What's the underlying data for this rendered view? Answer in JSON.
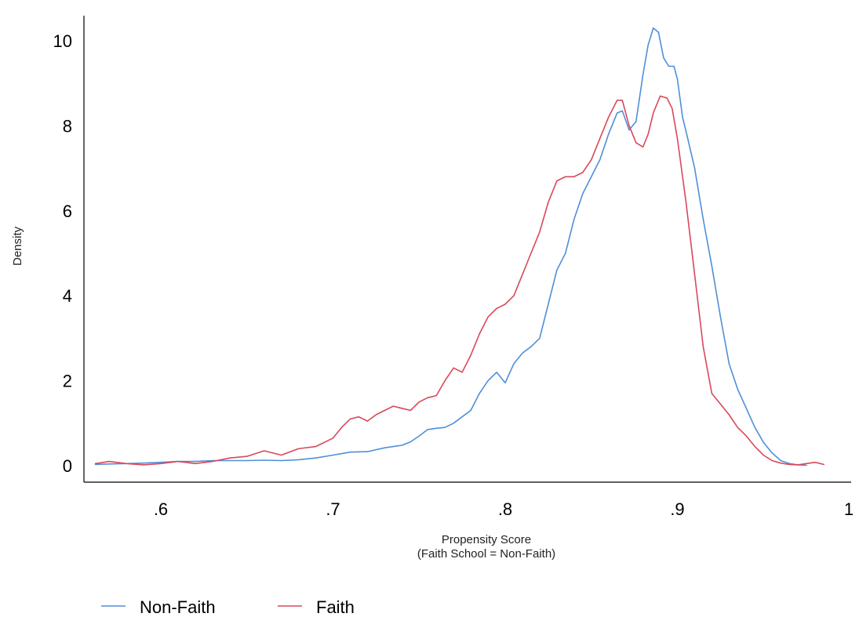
{
  "chart_data": {
    "type": "line",
    "xlabel": "Propensity Score",
    "xlabel_sub": "(Faith School = Non-Faith)",
    "ylabel": "Density",
    "xlim": [
      0.56,
      1.0
    ],
    "ylim": [
      0,
      10.5
    ],
    "x_ticks": [
      {
        "value": 0.6,
        "label": ".6"
      },
      {
        "value": 0.7,
        "label": ".7"
      },
      {
        "value": 0.8,
        "label": ".8"
      },
      {
        "value": 0.9,
        "label": ".9"
      },
      {
        "value": 1.0,
        "label": "1"
      }
    ],
    "y_ticks": [
      {
        "value": 0,
        "label": "0"
      },
      {
        "value": 2,
        "label": "2"
      },
      {
        "value": 4,
        "label": "4"
      },
      {
        "value": 6,
        "label": "6"
      },
      {
        "value": 8,
        "label": "8"
      },
      {
        "value": 10,
        "label": "10"
      }
    ],
    "grid": false,
    "legend": "bottom-left",
    "series": [
      {
        "name": "Non-Faith",
        "color": "#4f8fd6",
        "x": [
          0.562,
          0.57,
          0.58,
          0.59,
          0.6,
          0.61,
          0.62,
          0.63,
          0.64,
          0.65,
          0.66,
          0.67,
          0.68,
          0.69,
          0.7,
          0.71,
          0.72,
          0.73,
          0.74,
          0.745,
          0.75,
          0.755,
          0.76,
          0.765,
          0.77,
          0.775,
          0.78,
          0.785,
          0.79,
          0.795,
          0.8,
          0.805,
          0.81,
          0.815,
          0.82,
          0.825,
          0.83,
          0.835,
          0.84,
          0.845,
          0.85,
          0.855,
          0.86,
          0.865,
          0.868,
          0.872,
          0.876,
          0.88,
          0.883,
          0.886,
          0.889,
          0.892,
          0.895,
          0.898,
          0.9,
          0.903,
          0.906,
          0.91,
          0.915,
          0.92,
          0.925,
          0.93,
          0.935,
          0.94,
          0.945,
          0.95,
          0.955,
          0.96,
          0.965,
          0.97,
          0.975
        ],
        "y": [
          0.03,
          0.04,
          0.05,
          0.06,
          0.08,
          0.1,
          0.1,
          0.12,
          0.12,
          0.12,
          0.13,
          0.12,
          0.14,
          0.18,
          0.25,
          0.32,
          0.33,
          0.42,
          0.48,
          0.56,
          0.7,
          0.85,
          0.88,
          0.9,
          1.0,
          1.15,
          1.3,
          1.7,
          2.0,
          2.2,
          1.95,
          2.4,
          2.65,
          2.8,
          3.0,
          3.8,
          4.6,
          5.0,
          5.8,
          6.4,
          6.8,
          7.2,
          7.8,
          8.3,
          8.35,
          7.9,
          8.1,
          9.2,
          9.9,
          10.3,
          10.2,
          9.6,
          9.4,
          9.4,
          9.1,
          8.2,
          7.7,
          7.0,
          5.8,
          4.7,
          3.5,
          2.4,
          1.8,
          1.35,
          0.9,
          0.55,
          0.3,
          0.12,
          0.05,
          0.02,
          0.01
        ]
      },
      {
        "name": "Faith",
        "color": "#d9485a",
        "x": [
          0.562,
          0.57,
          0.58,
          0.59,
          0.6,
          0.61,
          0.62,
          0.63,
          0.64,
          0.65,
          0.66,
          0.67,
          0.68,
          0.69,
          0.7,
          0.705,
          0.71,
          0.715,
          0.72,
          0.725,
          0.73,
          0.735,
          0.74,
          0.745,
          0.75,
          0.755,
          0.76,
          0.765,
          0.77,
          0.775,
          0.78,
          0.785,
          0.79,
          0.795,
          0.8,
          0.805,
          0.81,
          0.815,
          0.82,
          0.825,
          0.83,
          0.835,
          0.84,
          0.845,
          0.85,
          0.855,
          0.86,
          0.865,
          0.868,
          0.872,
          0.876,
          0.88,
          0.883,
          0.886,
          0.89,
          0.894,
          0.897,
          0.9,
          0.905,
          0.91,
          0.915,
          0.92,
          0.925,
          0.93,
          0.935,
          0.94,
          0.945,
          0.95,
          0.955,
          0.96,
          0.965,
          0.97,
          0.975,
          0.98,
          0.985
        ],
        "y": [
          0.05,
          0.1,
          0.05,
          0.02,
          0.05,
          0.1,
          0.05,
          0.1,
          0.18,
          0.22,
          0.35,
          0.25,
          0.4,
          0.45,
          0.65,
          0.9,
          1.1,
          1.15,
          1.05,
          1.2,
          1.3,
          1.4,
          1.35,
          1.3,
          1.5,
          1.6,
          1.65,
          2.0,
          2.3,
          2.2,
          2.6,
          3.1,
          3.5,
          3.7,
          3.8,
          4.0,
          4.5,
          5.0,
          5.5,
          6.2,
          6.7,
          6.8,
          6.8,
          6.9,
          7.2,
          7.7,
          8.2,
          8.6,
          8.6,
          8.0,
          7.6,
          7.5,
          7.8,
          8.3,
          8.7,
          8.65,
          8.4,
          7.7,
          6.2,
          4.5,
          2.8,
          1.7,
          1.45,
          1.2,
          0.9,
          0.7,
          0.45,
          0.25,
          0.12,
          0.06,
          0.03,
          0.02,
          0.05,
          0.08,
          0.03
        ]
      }
    ]
  }
}
